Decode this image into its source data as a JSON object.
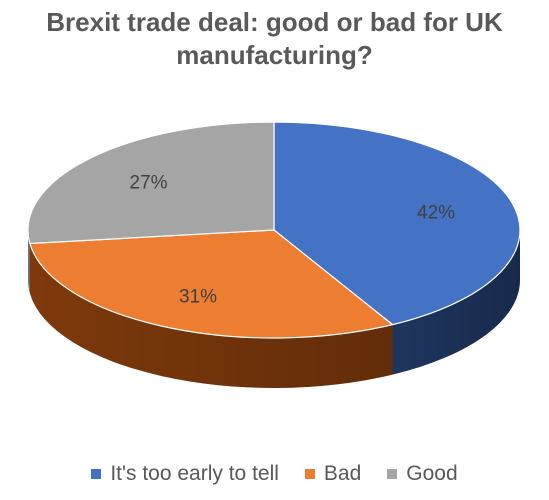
{
  "chart_data": {
    "type": "pie",
    "title": "Brexit trade deal: good or bad for UK manufacturing?",
    "title_lines": [
      "Brexit trade deal: good or bad for UK",
      "manufacturing?"
    ],
    "categories": [
      "It's too early to tell",
      "Bad",
      "Good"
    ],
    "values": [
      42,
      31,
      27
    ],
    "data_labels": [
      "42%",
      "31%",
      "27%"
    ],
    "colors": [
      "#4472C4",
      "#ED7D31",
      "#A5A5A5"
    ],
    "side_colors": [
      "#203864",
      "#843C0C",
      "#7F7F7F"
    ],
    "style": "3d-pie",
    "legend_position": "bottom"
  }
}
